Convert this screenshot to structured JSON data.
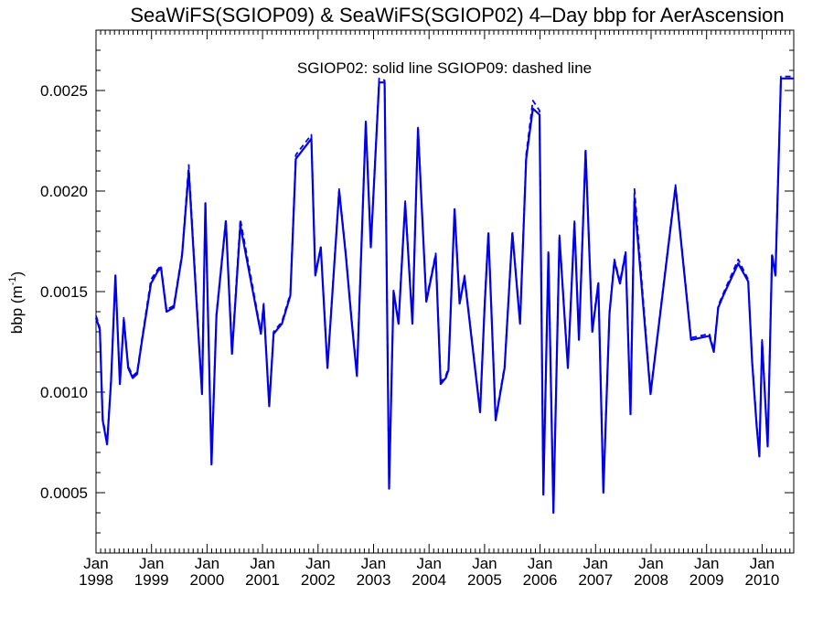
{
  "chart_data": {
    "type": "line",
    "title": "SeaWiFS(SGIOP09) & SeaWiFS(SGIOP02) 4–Day bbp for AerAscension",
    "ylabel": "bbp (m",
    "ylabel_exponent": "-1",
    "ylabel_close": ")",
    "annotation": "SGIOP02: solid line   SGIOP09: dashed line",
    "xlim": [
      1998.0,
      2010.57
    ],
    "ylim": [
      0.0002,
      0.0028
    ],
    "yticks": [
      {
        "value": 0.0005,
        "label": "0.0005"
      },
      {
        "value": 0.001,
        "label": "0.0010"
      },
      {
        "value": 0.0015,
        "label": "0.0015"
      },
      {
        "value": 0.002,
        "label": "0.0020"
      },
      {
        "value": 0.0025,
        "label": "0.0025"
      }
    ],
    "xticks": [
      {
        "value": 1998,
        "month": "Jan",
        "year": "1998"
      },
      {
        "value": 1999,
        "month": "Jan",
        "year": "1999"
      },
      {
        "value": 2000,
        "month": "Jan",
        "year": "2000"
      },
      {
        "value": 2001,
        "month": "Jan",
        "year": "2001"
      },
      {
        "value": 2002,
        "month": "Jan",
        "year": "2002"
      },
      {
        "value": 2003,
        "month": "Jan",
        "year": "2003"
      },
      {
        "value": 2004,
        "month": "Jan",
        "year": "2004"
      },
      {
        "value": 2005,
        "month": "Jan",
        "year": "2005"
      },
      {
        "value": 2006,
        "month": "Jan",
        "year": "2006"
      },
      {
        "value": 2007,
        "month": "Jan",
        "year": "2007"
      },
      {
        "value": 2008,
        "month": "Jan",
        "year": "2008"
      },
      {
        "value": 2009,
        "month": "Jan",
        "year": "2009"
      },
      {
        "value": 2010,
        "month": "Jan",
        "year": "2010"
      }
    ],
    "grid": false,
    "line_color": "#0000ee",
    "series": [
      {
        "name": "SGIOP02",
        "style": "solid",
        "x": [
          1998.0,
          1998.07,
          1998.12,
          1998.2,
          1998.27,
          1998.35,
          1998.43,
          1998.5,
          1998.58,
          1998.66,
          1998.74,
          1998.83,
          1998.99,
          1999.11,
          1999.17,
          1999.27,
          1999.4,
          1999.55,
          1999.67,
          1999.91,
          1999.97,
          2000.08,
          2000.17,
          2000.34,
          2000.45,
          2000.6,
          2000.97,
          2001.02,
          2001.12,
          2001.2,
          2001.35,
          2001.5,
          2001.6,
          2001.88,
          2001.95,
          2002.05,
          2002.17,
          2002.38,
          2002.5,
          2002.6,
          2002.7,
          2002.86,
          2002.95,
          2003.1,
          2003.2,
          2003.28,
          2003.36,
          2003.45,
          2003.57,
          2003.7,
          2003.8,
          2003.95,
          2004.12,
          2004.21,
          2004.3,
          2004.35,
          2004.46,
          2004.55,
          2004.64,
          2004.92,
          2005.0,
          2005.07,
          2005.2,
          2005.36,
          2005.5,
          2005.64,
          2005.75,
          2005.87,
          2005.99,
          2006.06,
          2006.15,
          2006.24,
          2006.35,
          2006.5,
          2006.62,
          2006.7,
          2006.82,
          2006.94,
          2007.05,
          2007.14,
          2007.25,
          2007.34,
          2007.44,
          2007.54,
          2007.63,
          2007.7,
          2007.99,
          2008.44,
          2008.72,
          2009.05,
          2009.13,
          2009.21,
          2009.3,
          2009.57,
          2009.75,
          2009.82,
          2009.9,
          2009.95,
          2010.0,
          2010.1,
          2010.18,
          2010.24,
          2010.34,
          2010.42,
          2010.5,
          2010.57
        ],
        "values": [
          0.00137,
          0.00131,
          0.00086,
          0.00074,
          0.00105,
          0.00158,
          0.00104,
          0.00136,
          0.00112,
          0.00107,
          0.00109,
          0.00126,
          0.00154,
          0.0016,
          0.00162,
          0.0014,
          0.00142,
          0.00168,
          0.0021,
          0.00099,
          0.00194,
          0.00064,
          0.00138,
          0.00185,
          0.00119,
          0.00183,
          0.00129,
          0.00143,
          0.00093,
          0.00129,
          0.00134,
          0.00148,
          0.00216,
          0.00226,
          0.00158,
          0.00172,
          0.00112,
          0.002,
          0.00168,
          0.00137,
          0.00108,
          0.00234,
          0.00172,
          0.00254,
          0.00254,
          0.00052,
          0.0015,
          0.00134,
          0.00194,
          0.00134,
          0.00231,
          0.00145,
          0.00168,
          0.00104,
          0.00107,
          0.00111,
          0.00191,
          0.00144,
          0.00157,
          0.0009,
          0.00142,
          0.00179,
          0.00086,
          0.00112,
          0.00179,
          0.00134,
          0.00216,
          0.00241,
          0.00238,
          0.00049,
          0.00169,
          0.0004,
          0.00177,
          0.00112,
          0.00184,
          0.00126,
          0.0022,
          0.0013,
          0.00154,
          0.0005,
          0.00139,
          0.00165,
          0.00154,
          0.00169,
          0.00089,
          0.00196,
          0.00099,
          0.00202,
          0.00126,
          0.00128,
          0.0012,
          0.00142,
          0.00148,
          0.00164,
          0.00155,
          0.00115,
          0.00084,
          0.00068,
          0.00125,
          0.00073,
          0.00168,
          0.00158,
          0.00256,
          0.00256,
          0.00256,
          0.00256
        ]
      },
      {
        "name": "SGIOP09",
        "style": "dashed",
        "x": [
          1998.0,
          1998.07,
          1998.12,
          1998.2,
          1998.27,
          1998.35,
          1998.43,
          1998.5,
          1998.58,
          1998.66,
          1998.74,
          1998.83,
          1998.99,
          1999.11,
          1999.17,
          1999.27,
          1999.4,
          1999.55,
          1999.67,
          1999.91,
          1999.97,
          2000.08,
          2000.17,
          2000.34,
          2000.45,
          2000.6,
          2000.97,
          2001.02,
          2001.12,
          2001.2,
          2001.35,
          2001.5,
          2001.6,
          2001.88,
          2001.95,
          2002.05,
          2002.17,
          2002.38,
          2002.5,
          2002.6,
          2002.7,
          2002.86,
          2002.95,
          2003.1,
          2003.2,
          2003.28,
          2003.36,
          2003.45,
          2003.57,
          2003.7,
          2003.8,
          2003.95,
          2004.12,
          2004.21,
          2004.3,
          2004.35,
          2004.46,
          2004.55,
          2004.64,
          2004.92,
          2005.0,
          2005.07,
          2005.2,
          2005.36,
          2005.5,
          2005.64,
          2005.75,
          2005.87,
          2005.99,
          2006.06,
          2006.15,
          2006.24,
          2006.35,
          2006.5,
          2006.62,
          2006.7,
          2006.82,
          2006.94,
          2007.05,
          2007.14,
          2007.25,
          2007.34,
          2007.44,
          2007.54,
          2007.63,
          2007.7,
          2007.99,
          2008.44,
          2008.72,
          2009.05,
          2009.13,
          2009.21,
          2009.3,
          2009.57,
          2009.75,
          2009.82,
          2009.9,
          2009.95,
          2010.0,
          2010.1,
          2010.18,
          2010.24,
          2010.34,
          2010.42,
          2010.5,
          2010.57
        ],
        "values": [
          0.00138,
          0.00132,
          0.00087,
          0.00075,
          0.00106,
          0.00157,
          0.00105,
          0.00137,
          0.00113,
          0.00108,
          0.0011,
          0.00127,
          0.00156,
          0.00161,
          0.00163,
          0.00141,
          0.00143,
          0.00169,
          0.00213,
          0.001,
          0.00194,
          0.00065,
          0.00139,
          0.00186,
          0.0012,
          0.00186,
          0.0013,
          0.00144,
          0.00094,
          0.0013,
          0.00135,
          0.00149,
          0.00218,
          0.00228,
          0.00159,
          0.00172,
          0.00113,
          0.00201,
          0.00169,
          0.00138,
          0.00109,
          0.00235,
          0.00173,
          0.00256,
          0.00255,
          0.00052,
          0.00151,
          0.00135,
          0.00195,
          0.00135,
          0.00232,
          0.00146,
          0.00169,
          0.00105,
          0.00108,
          0.00112,
          0.00191,
          0.00145,
          0.00158,
          0.00091,
          0.00143,
          0.0018,
          0.00087,
          0.00113,
          0.0018,
          0.00135,
          0.00218,
          0.00245,
          0.0024,
          0.0005,
          0.0017,
          0.00041,
          0.00178,
          0.00113,
          0.00185,
          0.00127,
          0.00221,
          0.00131,
          0.00155,
          0.00051,
          0.0014,
          0.00166,
          0.00155,
          0.0017,
          0.0009,
          0.00201,
          0.001,
          0.00203,
          0.00127,
          0.00129,
          0.00121,
          0.00143,
          0.00149,
          0.00166,
          0.00156,
          0.00116,
          0.00085,
          0.00069,
          0.00126,
          0.00074,
          0.00169,
          0.00159,
          0.00257,
          0.00257,
          0.00257,
          0.00257
        ]
      }
    ]
  }
}
